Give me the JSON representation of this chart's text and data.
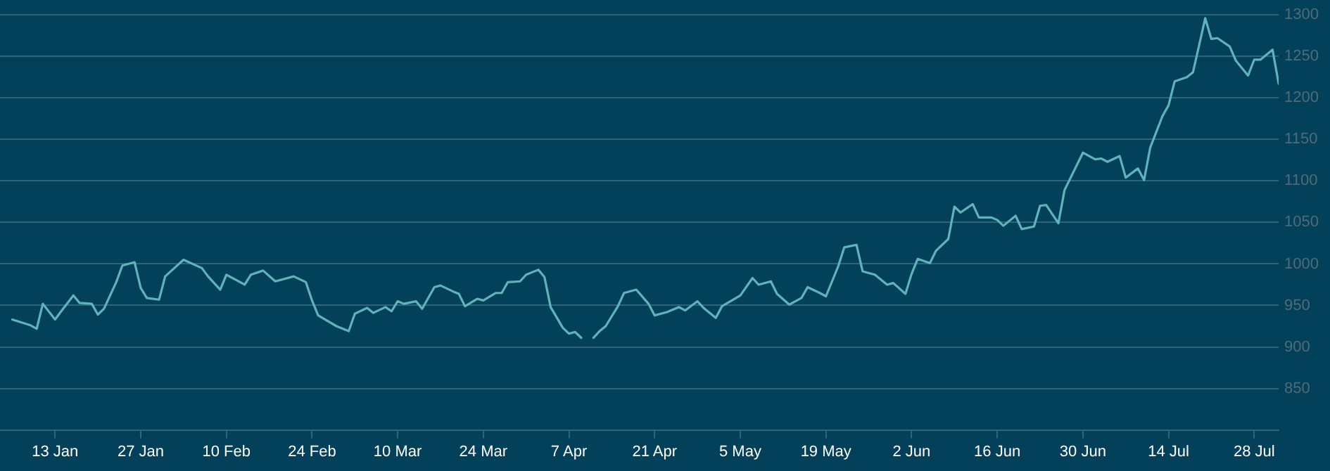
{
  "chart_data": {
    "type": "line",
    "x": [
      "--01-06",
      "--01-09",
      "--01-10",
      "--01-11",
      "--01-13",
      "--01-14",
      "--01-16",
      "--01-17",
      "--01-19",
      "--01-20",
      "--01-21",
      "--01-23",
      "--01-24",
      "--01-26",
      "--01-27",
      "--01-28",
      "--01-30",
      "--01-31",
      "--02-03",
      "--02-06",
      "--02-07",
      "--02-09",
      "--02-10",
      "--02-11",
      "--02-13",
      "--02-14",
      "--02-16",
      "--02-18",
      "--02-21",
      "--02-23",
      "--02-24",
      "--02-25",
      "--02-28",
      "--03-02",
      "--03-03",
      "--03-05",
      "--03-06",
      "--03-08",
      "--03-09",
      "--03-10",
      "--03-11",
      "--03-13",
      "--03-14",
      "--03-16",
      "--03-17",
      "--03-19",
      "--03-20",
      "--03-21",
      "--03-23",
      "--03-24",
      "--03-26",
      "--03-27",
      "--03-28",
      "--03-30",
      "--03-31",
      "--04-02",
      "--04-03",
      "--04-04",
      "--04-06",
      "--04-07",
      "--04-08",
      "--04-09",
      "--04-10",
      "--04-11",
      "--04-12",
      "--04-13",
      "--04-15",
      "--04-16",
      "--04-18",
      "--04-20",
      "--04-21",
      "--04-23",
      "--04-25",
      "--04-26",
      "--04-28",
      "--04-29",
      "--05-01",
      "--05-02",
      "--05-05",
      "--05-07",
      "--05-08",
      "--05-10",
      "--05-11",
      "--05-13",
      "--05-15",
      "--05-16",
      "--05-18",
      "--05-19",
      "--05-21",
      "--05-22",
      "--05-24",
      "--05-25",
      "--05-27",
      "--05-29",
      "--05-30",
      "--06-01",
      "--06-02",
      "--06-03",
      "--06-05",
      "--06-06",
      "--06-08",
      "--06-09",
      "--06-10",
      "--06-12",
      "--06-13",
      "--06-15",
      "--06-16",
      "--06-17",
      "--06-19",
      "--06-20",
      "--06-22",
      "--06-23",
      "--06-24",
      "--06-26",
      "--06-27",
      "--06-29",
      "--06-30",
      "--07-02",
      "--07-03",
      "--07-04",
      "--07-06",
      "--07-07",
      "--07-09",
      "--07-10",
      "--07-11",
      "--07-13",
      "--07-14",
      "--07-15",
      "--07-17",
      "--07-18",
      "--07-20",
      "--07-21",
      "--07-22",
      "--07-24",
      "--07-25",
      "--07-27",
      "--07-28",
      "--07-29",
      "--07-31",
      "--08-01"
    ],
    "series": [
      {
        "color": "#5fb3bb",
        "values": [
          933,
          926,
          922,
          952,
          933,
          943,
          962,
          953,
          952,
          939,
          946,
          978,
          998,
          1002,
          971,
          959,
          957,
          985,
          1005,
          995,
          985,
          969,
          987,
          983,
          975,
          987,
          992,
          979,
          985,
          978,
          956,
          938,
          925,
          919,
          940,
          947,
          941,
          948,
          943,
          955,
          952,
          955,
          946,
          972,
          974,
          967,
          964,
          949,
          958,
          956,
          965,
          965,
          978,
          979,
          987,
          993,
          984,
          948,
          923,
          916,
          918,
          911,
          null,
          911,
          919,
          925,
          949,
          965,
          969,
          952,
          938,
          942,
          948,
          944,
          955,
          947,
          935,
          949,
          962,
          983,
          975,
          979,
          964,
          951,
          959,
          972,
          965,
          961,
          997,
          1020,
          1023,
          991,
          987,
          975,
          977,
          964,
          988,
          1006,
          1001,
          1016,
          1030,
          1069,
          1062,
          1072,
          1056,
          1056,
          1053,
          1046,
          1058,
          1042,
          1045,
          1070,
          1071,
          1049,
          1089,
          1119,
          1134,
          1126,
          1127,
          1123,
          1130,
          1104,
          1115,
          1101,
          1140,
          1178,
          1191,
          1220,
          1225,
          1231,
          1296,
          1271,
          1272,
          1262,
          1245,
          1227,
          1246,
          1246,
          1258,
          1217
        ]
      }
    ],
    "xlim": [
      "--01-04",
      "--08-01"
    ],
    "xticks": [
      {
        "value": "--01-13",
        "label": "13 Jan"
      },
      {
        "value": "--01-27",
        "label": "27 Jan"
      },
      {
        "value": "--02-10",
        "label": "10 Feb"
      },
      {
        "value": "--02-24",
        "label": "24 Feb"
      },
      {
        "value": "--03-10",
        "label": "10 Mar"
      },
      {
        "value": "--03-24",
        "label": "24 Mar"
      },
      {
        "value": "--04-07",
        "label": "7 Apr"
      },
      {
        "value": "--04-21",
        "label": "21 Apr"
      },
      {
        "value": "--05-05",
        "label": "5 May"
      },
      {
        "value": "--05-19",
        "label": "19 May"
      },
      {
        "value": "--06-02",
        "label": "2 Jun"
      },
      {
        "value": "--06-16",
        "label": "16 Jun"
      },
      {
        "value": "--06-30",
        "label": "30 Jun"
      },
      {
        "value": "--07-14",
        "label": "14 Jul"
      },
      {
        "value": "--07-28",
        "label": "28 Jul"
      }
    ],
    "ylim": [
      800,
      1300
    ],
    "yticks": [
      850,
      900,
      950,
      1000,
      1050,
      1100,
      1150,
      1200,
      1250,
      1300
    ],
    "grid": "y",
    "legend": false,
    "marker": "none",
    "line_style": "solid"
  }
}
